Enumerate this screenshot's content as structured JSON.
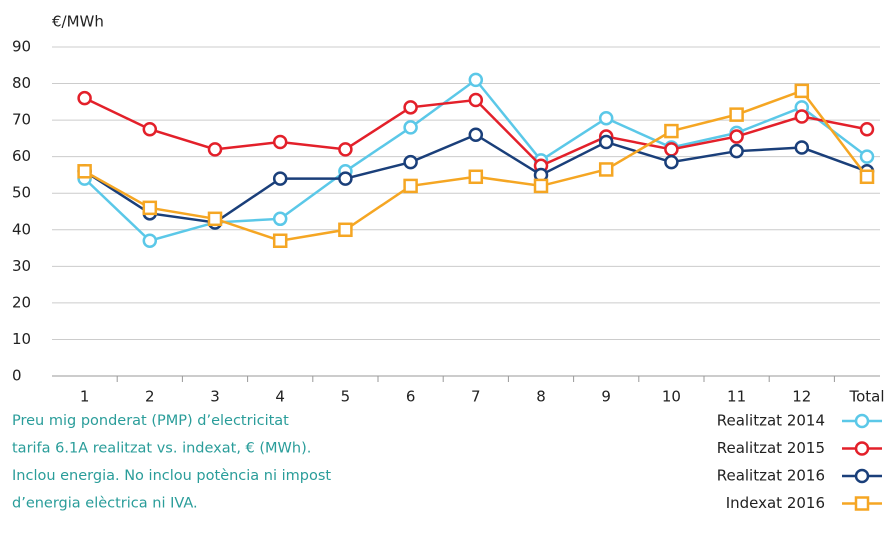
{
  "chart_data": {
    "type": "line",
    "y_label": "€/MWh",
    "categories": [
      "1",
      "2",
      "3",
      "4",
      "5",
      "6",
      "7",
      "8",
      "9",
      "10",
      "11",
      "12",
      "Total"
    ],
    "series": [
      {
        "name": "Realitzat 2014",
        "color": "#5bc8e8",
        "marker": "circle",
        "values": [
          54,
          37,
          42,
          43,
          56,
          68,
          81,
          59,
          70.5,
          62.5,
          66.5,
          73.5,
          60
        ]
      },
      {
        "name": "Realitzat 2015",
        "color": "#e3202a",
        "marker": "circle",
        "values": [
          76,
          67.5,
          62,
          64,
          62,
          73.5,
          75.5,
          57.5,
          65.5,
          62,
          65.5,
          71,
          67.5
        ]
      },
      {
        "name": "Realitzat 2016",
        "color": "#1a3f7a",
        "marker": "circle",
        "values": [
          56,
          44.5,
          42,
          54,
          54,
          58.5,
          66,
          55,
          64,
          58.5,
          61.5,
          62.5,
          56
        ]
      },
      {
        "name": "Indexat 2016",
        "color": "#f5a623",
        "marker": "square",
        "values": [
          56,
          46,
          43,
          37,
          40,
          52,
          54.5,
          52,
          56.5,
          67,
          71.5,
          78,
          54.5
        ]
      }
    ],
    "ylim": [
      0,
      90
    ],
    "yticks": [
      0,
      10,
      20,
      30,
      40,
      50,
      60,
      70,
      80,
      90
    ],
    "grid": true,
    "caption": [
      "Preu mig ponderat (PMP) d’electricitat",
      "tarifa 6.1A realitzat vs. indexat, € (MWh).",
      "Inclou energia. No inclou potència ni impost",
      "d’energia elèctrica ni IVA."
    ],
    "legend": "bottom-right"
  }
}
